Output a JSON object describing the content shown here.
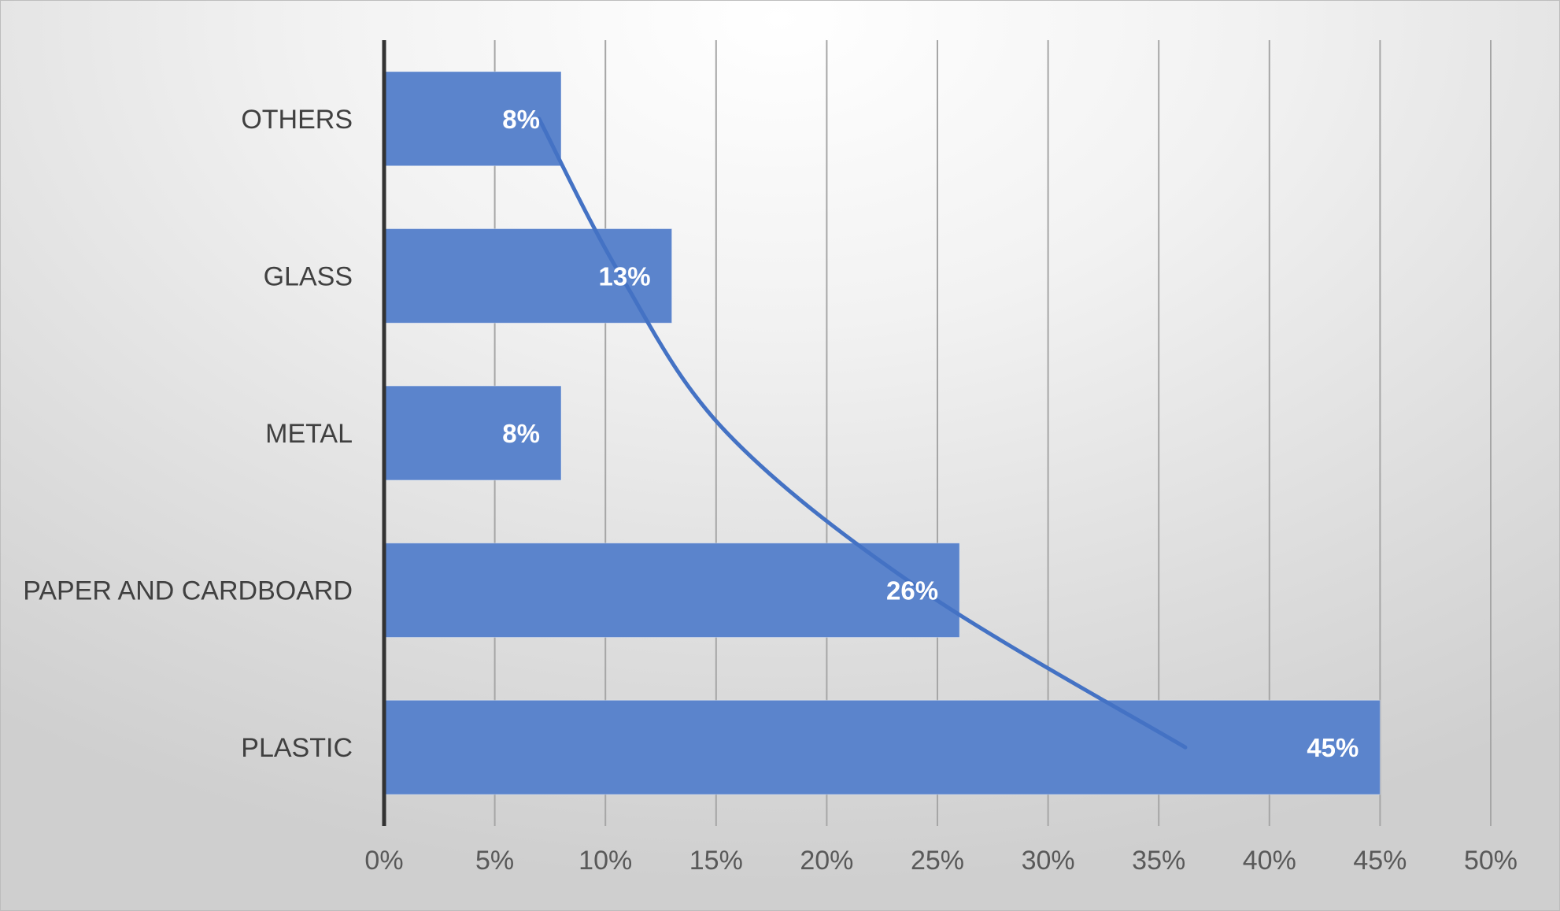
{
  "chart_data": {
    "type": "bar",
    "orientation": "horizontal",
    "title": "",
    "xlabel": "",
    "ylabel": "",
    "categories": [
      "OTHERS",
      "GLASS",
      "METAL",
      "PAPER AND CARDBOARD",
      "PLASTIC"
    ],
    "values": [
      8,
      13,
      8,
      26,
      45
    ],
    "data_labels": [
      "8%",
      "13%",
      "8%",
      "26%",
      "45%"
    ],
    "xlim": [
      0,
      50
    ],
    "x_ticks": [
      0,
      5,
      10,
      15,
      20,
      25,
      30,
      35,
      40,
      45,
      50
    ],
    "x_tick_labels": [
      "0%",
      "5%",
      "10%",
      "15%",
      "20%",
      "25%",
      "30%",
      "35%",
      "40%",
      "45%",
      "50%"
    ],
    "grid": true,
    "legend": "none",
    "trendline": {
      "type": "exponential",
      "color": "#4472C4",
      "points": [
        {
          "category": "OTHERS",
          "x": 7
        },
        {
          "category": "GLASS",
          "x": 10.7
        },
        {
          "category": "METAL",
          "x": 15.5
        },
        {
          "category": "PAPER AND CARDBOARD",
          "x": 24.3
        },
        {
          "category": "PLASTIC",
          "x": 36.2
        }
      ]
    },
    "colors": {
      "bar": "#5B84CC",
      "gridline": "#a6a6a6",
      "axis": "#333333"
    }
  }
}
